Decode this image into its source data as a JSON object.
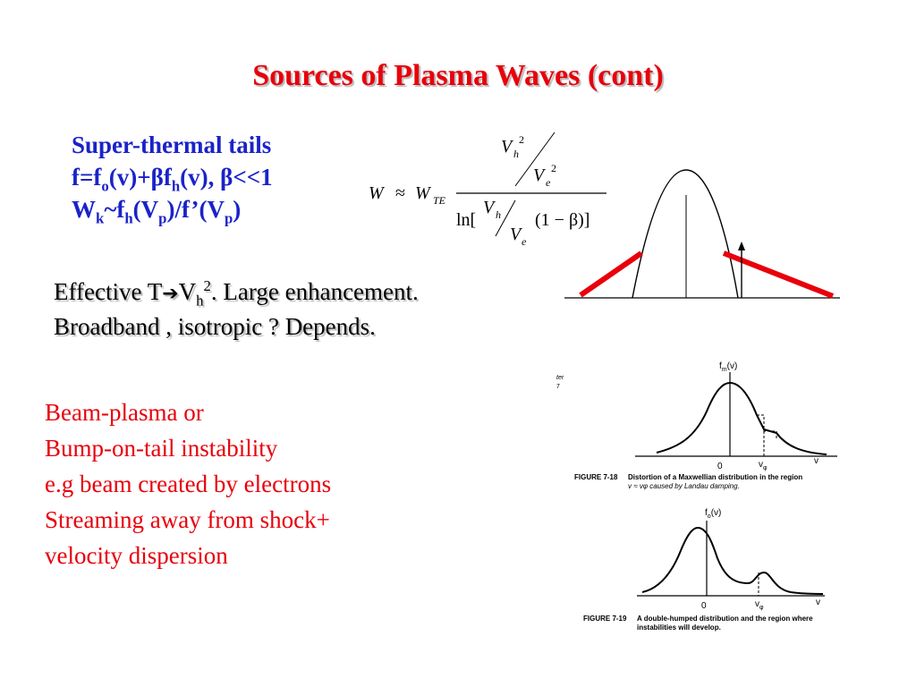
{
  "title": "Sources of Plasma Waves (cont)",
  "superthermal": {
    "heading": "Super-thermal tails",
    "line2": {
      "a": "f=f",
      "a_sub": "o",
      "b": "(v)+βf",
      "b_sub": "h",
      "c": "(v), β<<1"
    },
    "line3": {
      "a": "W",
      "a_sub": "k",
      "b": "~f",
      "b_sub": "h",
      "c": "(V",
      "c_sub": "p",
      "d": ")/f’(V",
      "d_sub": "p",
      "e": ")"
    }
  },
  "formula": {
    "W": "W",
    "approx": "≈",
    "WTE": "W",
    "WTE_sub": "TE",
    "Vh": "V",
    "h": "h",
    "two": "2",
    "Ve": "V",
    "e": "e",
    "ln": "ln[",
    "tail": "(1 − β)]"
  },
  "effective": {
    "line1_a": "Effective T",
    "arrow": "➔",
    "line1_b": "V",
    "line1_sub": "h",
    "line1_sup": "2",
    "line1_c": ". Large enhancement.",
    "line2": "Broadband , isotropic ? Depends."
  },
  "beam": {
    "items": [
      "Beam-plasma or",
      "Bump-on-tail instability",
      "e.g beam created by electrons",
      "Streaming away from shock+",
      "velocity dispersion"
    ]
  },
  "fig18": {
    "ylabel": "f",
    "ylabel_sub": "m",
    "ylabel_c": "(v)",
    "zero": "0",
    "vphi": "v",
    "vphi_sub": "φ",
    "v": "v",
    "caption_label": "FIGURE 7-18",
    "caption_1": "Distortion of a Maxwellian distribution in the region",
    "caption_2": "v ≈ vφ caused by Landau damping.",
    "margin_1": "ter",
    "margin_2": "7"
  },
  "fig19": {
    "ylabel": "f",
    "ylabel_sub": "o",
    "ylabel_c": "(v)",
    "zero": "0",
    "vphi": "v",
    "vphi_sub": "φ",
    "v": "v",
    "caption_label": "FIGURE 7-19",
    "caption_1": "A double-humped distribution and the region where",
    "caption_2": "instabilities will develop."
  },
  "colors": {
    "title": "#e8000b",
    "blue_text": "#1a23c8",
    "red_text": "#e8000b",
    "tail_line": "#e8000b"
  }
}
